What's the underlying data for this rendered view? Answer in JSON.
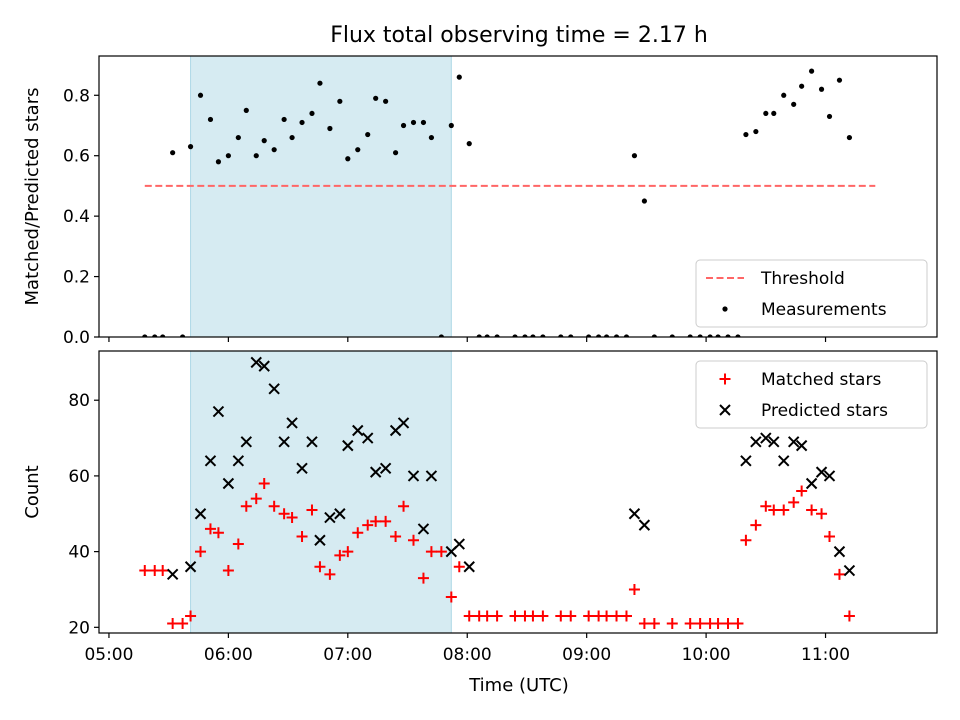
{
  "figure": {
    "title": "Flux total observing time = 2.17 h",
    "xlabel": "Time (UTC)",
    "x_tick_labels": [
      "05:00",
      "06:00",
      "07:00",
      "08:00",
      "09:00",
      "10:00",
      "11:00"
    ],
    "highlight_color": "#add8e6",
    "shaded_span": [
      "05:41",
      "07:52"
    ]
  },
  "chart_data": [
    {
      "type": "scatter",
      "title": "Flux total observing time = 2.17 h",
      "xlabel": "",
      "ylabel": "Matched/Predicted stars",
      "x_unit": "time (HH:MM UTC)",
      "xlim": [
        "04:55",
        "11:56"
      ],
      "ylim": [
        0,
        0.93
      ],
      "y_ticks": [
        0.0,
        0.2,
        0.4,
        0.6,
        0.8
      ],
      "y_tick_labels": [
        "0.0",
        "0.2",
        "0.4",
        "0.6",
        "0.8"
      ],
      "legend": {
        "position": "lower-right",
        "entries": [
          "Threshold",
          "Measurements"
        ]
      },
      "threshold": {
        "name": "Threshold",
        "value": 0.5,
        "x_range": [
          "05:18",
          "11:25"
        ],
        "color": "#ff6666",
        "style": "dashed"
      },
      "series": [
        {
          "name": "Measurements",
          "color": "#000000",
          "marker": "dot",
          "points": [
            [
              "05:18",
              0.0
            ],
            [
              "05:23",
              0.0
            ],
            [
              "05:27",
              0.0
            ],
            [
              "05:32",
              0.61
            ],
            [
              "05:37",
              0.0
            ],
            [
              "05:41",
              0.63
            ],
            [
              "05:46",
              0.8
            ],
            [
              "05:51",
              0.72
            ],
            [
              "05:55",
              0.58
            ],
            [
              "06:00",
              0.6
            ],
            [
              "06:05",
              0.66
            ],
            [
              "06:09",
              0.75
            ],
            [
              "06:14",
              0.6
            ],
            [
              "06:18",
              0.65
            ],
            [
              "06:23",
              0.62
            ],
            [
              "06:28",
              0.72
            ],
            [
              "06:32",
              0.66
            ],
            [
              "06:37",
              0.71
            ],
            [
              "06:42",
              0.74
            ],
            [
              "06:46",
              0.84
            ],
            [
              "06:51",
              0.69
            ],
            [
              "06:56",
              0.78
            ],
            [
              "07:00",
              0.59
            ],
            [
              "07:05",
              0.62
            ],
            [
              "07:10",
              0.67
            ],
            [
              "07:14",
              0.79
            ],
            [
              "07:19",
              0.78
            ],
            [
              "07:24",
              0.61
            ],
            [
              "07:28",
              0.7
            ],
            [
              "07:33",
              0.71
            ],
            [
              "07:38",
              0.71
            ],
            [
              "07:42",
              0.66
            ],
            [
              "07:47",
              0.0
            ],
            [
              "07:52",
              0.7
            ],
            [
              "07:56",
              0.86
            ],
            [
              "08:01",
              0.64
            ],
            [
              "08:06",
              0.0
            ],
            [
              "08:10",
              0.0
            ],
            [
              "08:15",
              0.0
            ],
            [
              "08:24",
              0.0
            ],
            [
              "08:29",
              0.0
            ],
            [
              "08:33",
              0.0
            ],
            [
              "08:38",
              0.0
            ],
            [
              "08:47",
              0.0
            ],
            [
              "08:52",
              0.0
            ],
            [
              "09:01",
              0.0
            ],
            [
              "09:06",
              0.0
            ],
            [
              "09:10",
              0.0
            ],
            [
              "09:15",
              0.0
            ],
            [
              "09:20",
              0.0
            ],
            [
              "09:24",
              0.6
            ],
            [
              "09:29",
              0.45
            ],
            [
              "09:34",
              0.0
            ],
            [
              "09:43",
              0.0
            ],
            [
              "09:52",
              0.0
            ],
            [
              "09:57",
              0.0
            ],
            [
              "10:02",
              0.0
            ],
            [
              "10:06",
              0.0
            ],
            [
              "10:11",
              0.0
            ],
            [
              "10:16",
              0.0
            ],
            [
              "10:20",
              0.67
            ],
            [
              "10:25",
              0.68
            ],
            [
              "10:30",
              0.74
            ],
            [
              "10:34",
              0.74
            ],
            [
              "10:39",
              0.8
            ],
            [
              "10:44",
              0.77
            ],
            [
              "10:48",
              0.83
            ],
            [
              "10:53",
              0.88
            ],
            [
              "10:58",
              0.82
            ],
            [
              "11:02",
              0.73
            ],
            [
              "11:07",
              0.85
            ],
            [
              "11:12",
              0.66
            ]
          ]
        }
      ]
    },
    {
      "type": "scatter",
      "title": "",
      "xlabel": "Time (UTC)",
      "ylabel": "Count",
      "x_unit": "time (HH:MM UTC)",
      "xlim": [
        "04:55",
        "11:56"
      ],
      "ylim": [
        18.5,
        93
      ],
      "y_ticks": [
        20,
        40,
        60,
        80
      ],
      "y_tick_labels": [
        "20",
        "40",
        "60",
        "80"
      ],
      "x_ticks": [
        "05:00",
        "06:00",
        "07:00",
        "08:00",
        "09:00",
        "10:00",
        "11:00"
      ],
      "x_tick_labels": [
        "05:00",
        "06:00",
        "07:00",
        "08:00",
        "09:00",
        "10:00",
        "11:00"
      ],
      "legend": {
        "position": "top-right",
        "entries": [
          "Matched stars",
          "Predicted stars"
        ]
      },
      "series": [
        {
          "name": "Matched stars",
          "color": "#ff0000",
          "marker": "plus",
          "points": [
            [
              "05:18",
              35
            ],
            [
              "05:23",
              35
            ],
            [
              "05:27",
              35
            ],
            [
              "05:32",
              21
            ],
            [
              "05:37",
              21
            ],
            [
              "05:41",
              23
            ],
            [
              "05:46",
              40
            ],
            [
              "05:51",
              46
            ],
            [
              "05:55",
              45
            ],
            [
              "06:00",
              35
            ],
            [
              "06:05",
              42
            ],
            [
              "06:09",
              52
            ],
            [
              "06:14",
              54
            ],
            [
              "06:18",
              58
            ],
            [
              "06:23",
              52
            ],
            [
              "06:28",
              50
            ],
            [
              "06:32",
              49
            ],
            [
              "06:37",
              44
            ],
            [
              "06:42",
              51
            ],
            [
              "06:46",
              36
            ],
            [
              "06:51",
              34
            ],
            [
              "06:56",
              39
            ],
            [
              "07:00",
              40
            ],
            [
              "07:05",
              45
            ],
            [
              "07:10",
              47
            ],
            [
              "07:14",
              48
            ],
            [
              "07:19",
              48
            ],
            [
              "07:24",
              44
            ],
            [
              "07:28",
              52
            ],
            [
              "07:33",
              43
            ],
            [
              "07:38",
              33
            ],
            [
              "07:42",
              40
            ],
            [
              "07:47",
              40
            ],
            [
              "07:52",
              28
            ],
            [
              "07:56",
              36
            ],
            [
              "08:01",
              23
            ],
            [
              "08:06",
              23
            ],
            [
              "08:10",
              23
            ],
            [
              "08:15",
              23
            ],
            [
              "08:24",
              23
            ],
            [
              "08:29",
              23
            ],
            [
              "08:33",
              23
            ],
            [
              "08:38",
              23
            ],
            [
              "08:47",
              23
            ],
            [
              "08:52",
              23
            ],
            [
              "09:01",
              23
            ],
            [
              "09:06",
              23
            ],
            [
              "09:10",
              23
            ],
            [
              "09:15",
              23
            ],
            [
              "09:20",
              23
            ],
            [
              "09:24",
              30
            ],
            [
              "09:29",
              21
            ],
            [
              "09:34",
              21
            ],
            [
              "09:43",
              21
            ],
            [
              "09:52",
              21
            ],
            [
              "09:57",
              21
            ],
            [
              "10:02",
              21
            ],
            [
              "10:06",
              21
            ],
            [
              "10:11",
              21
            ],
            [
              "10:16",
              21
            ],
            [
              "10:20",
              43
            ],
            [
              "10:25",
              47
            ],
            [
              "10:30",
              52
            ],
            [
              "10:34",
              51
            ],
            [
              "10:39",
              51
            ],
            [
              "10:44",
              53
            ],
            [
              "10:48",
              56
            ],
            [
              "10:53",
              51
            ],
            [
              "10:58",
              50
            ],
            [
              "11:02",
              44
            ],
            [
              "11:07",
              34
            ],
            [
              "11:12",
              23
            ]
          ]
        },
        {
          "name": "Predicted stars",
          "color": "#000000",
          "marker": "x",
          "points": [
            [
              "05:32",
              34
            ],
            [
              "05:41",
              36
            ],
            [
              "05:46",
              50
            ],
            [
              "05:51",
              64
            ],
            [
              "05:55",
              77
            ],
            [
              "06:00",
              58
            ],
            [
              "06:05",
              64
            ],
            [
              "06:09",
              69
            ],
            [
              "06:14",
              90
            ],
            [
              "06:18",
              89
            ],
            [
              "06:23",
              83
            ],
            [
              "06:28",
              69
            ],
            [
              "06:32",
              74
            ],
            [
              "06:37",
              62
            ],
            [
              "06:42",
              69
            ],
            [
              "06:46",
              43
            ],
            [
              "06:51",
              49
            ],
            [
              "06:56",
              50
            ],
            [
              "07:00",
              68
            ],
            [
              "07:05",
              72
            ],
            [
              "07:10",
              70
            ],
            [
              "07:14",
              61
            ],
            [
              "07:19",
              62
            ],
            [
              "07:24",
              72
            ],
            [
              "07:28",
              74
            ],
            [
              "07:33",
              60
            ],
            [
              "07:38",
              46
            ],
            [
              "07:42",
              60
            ],
            [
              "07:52",
              40
            ],
            [
              "07:56",
              42
            ],
            [
              "08:01",
              36
            ],
            [
              "09:24",
              50
            ],
            [
              "09:29",
              47
            ],
            [
              "10:20",
              64
            ],
            [
              "10:25",
              69
            ],
            [
              "10:30",
              70
            ],
            [
              "10:34",
              69
            ],
            [
              "10:39",
              64
            ],
            [
              "10:44",
              69
            ],
            [
              "10:48",
              68
            ],
            [
              "10:53",
              58
            ],
            [
              "10:58",
              61
            ],
            [
              "11:02",
              60
            ],
            [
              "11:07",
              40
            ],
            [
              "11:12",
              35
            ]
          ]
        }
      ]
    }
  ]
}
